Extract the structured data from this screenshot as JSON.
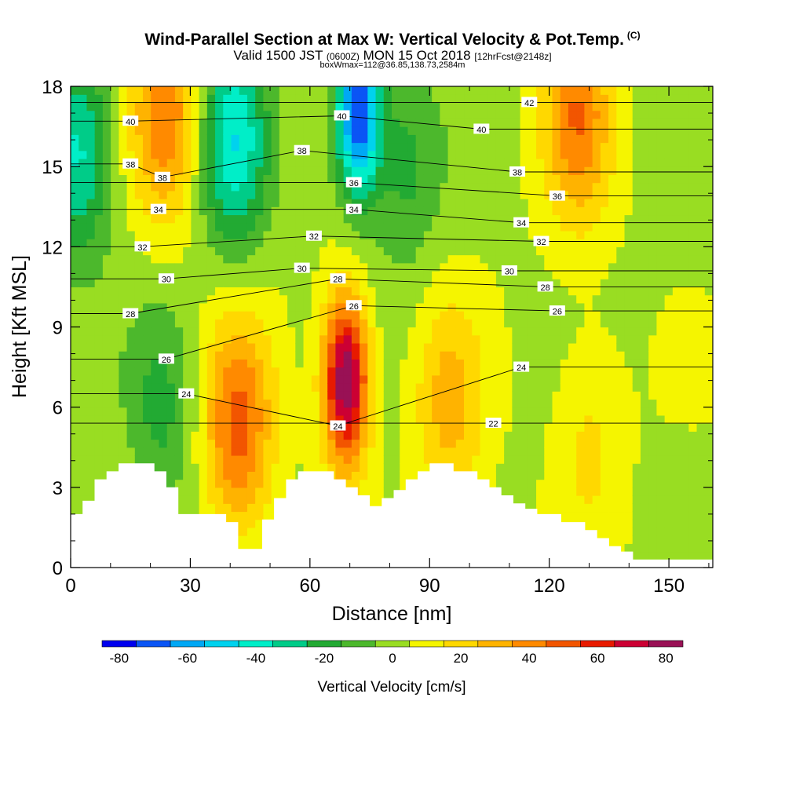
{
  "title": {
    "main": "Wind-Parallel Section at Max W: Vertical Velocity & Pot.Temp.",
    "copyright": "(C)",
    "valid_prefix": "Valid 1500 JST",
    "valid_utc": "(0600Z)",
    "valid_date": "MON 15 Oct 2018",
    "forecast": "[12hrFcst@2148z]",
    "box_info": "boxWmax=112@36.85,138.73,2584m"
  },
  "chart_data": {
    "type": "heatmap",
    "xlabel": "Distance [nm]",
    "ylabel": "Height [Kft MSL]",
    "xlim": [
      0,
      161
    ],
    "ylim": [
      0,
      18
    ],
    "xticks": [
      0,
      30,
      60,
      90,
      120,
      150
    ],
    "yticks": [
      0,
      3,
      6,
      9,
      12,
      15,
      18
    ],
    "colorbar": {
      "label": "Vertical Velocity [cm/s]",
      "ticks": [
        -80,
        -60,
        -40,
        -20,
        0,
        20,
        40,
        60,
        80
      ],
      "bins": [
        -85,
        -75,
        -65,
        -55,
        -45,
        -35,
        -25,
        -15,
        -5,
        5,
        15,
        25,
        35,
        45,
        55,
        65,
        75,
        85
      ],
      "colors": [
        "#0000ee",
        "#0a55f5",
        "#00a8f5",
        "#00d2ee",
        "#00eec8",
        "#00cc88",
        "#22aa33",
        "#4cb82c",
        "#99dd22",
        "#f5f500",
        "#ffd800",
        "#ffb300",
        "#ff8a00",
        "#f25500",
        "#e81a00",
        "#cc0033",
        "#991155",
        "#660088"
      ]
    },
    "field_features": [
      {
        "kind": "updraft",
        "x": 69,
        "y": 7,
        "w": 85,
        "desc": "max updraft core"
      },
      {
        "kind": "updraft",
        "x": 42,
        "y": 5.2,
        "w": 45
      },
      {
        "kind": "updraft",
        "x": 24,
        "y": 17,
        "w": 40
      },
      {
        "kind": "updraft",
        "x": 127,
        "y": 17,
        "w": 40
      },
      {
        "kind": "updraft",
        "x": 95,
        "y": 6,
        "w": 25
      },
      {
        "kind": "updraft",
        "x": 130,
        "y": 5,
        "w": 15
      },
      {
        "kind": "downdraft",
        "x": 72,
        "y": 17,
        "w": -80
      },
      {
        "kind": "downdraft",
        "x": 41,
        "y": 16,
        "w": -45
      },
      {
        "kind": "downdraft",
        "x": 2,
        "y": 15.5,
        "w": -40
      },
      {
        "kind": "downdraft",
        "x": 23,
        "y": 6,
        "w": -20
      },
      {
        "kind": "downdraft",
        "x": 84,
        "y": 15,
        "w": -20
      }
    ],
    "contours": {
      "variable": "Potential Temperature",
      "labels": [
        {
          "value": 40,
          "x": 15,
          "y": 16.7
        },
        {
          "value": 38,
          "x": 15,
          "y": 15.1
        },
        {
          "value": 38,
          "x": 23,
          "y": 14.6
        },
        {
          "value": 34,
          "x": 22,
          "y": 13.4
        },
        {
          "value": 32,
          "x": 18,
          "y": 12.0
        },
        {
          "value": 30,
          "x": 24,
          "y": 10.8
        },
        {
          "value": 28,
          "x": 15,
          "y": 9.5
        },
        {
          "value": 26,
          "x": 24,
          "y": 7.8
        },
        {
          "value": 24,
          "x": 29,
          "y": 6.5
        },
        {
          "value": 40,
          "x": 68,
          "y": 16.9
        },
        {
          "value": 38,
          "x": 58,
          "y": 15.6
        },
        {
          "value": 36,
          "x": 71,
          "y": 14.4
        },
        {
          "value": 34,
          "x": 71,
          "y": 13.4
        },
        {
          "value": 32,
          "x": 61,
          "y": 12.4
        },
        {
          "value": 30,
          "x": 58,
          "y": 11.2
        },
        {
          "value": 28,
          "x": 67,
          "y": 10.8
        },
        {
          "value": 26,
          "x": 71,
          "y": 9.8
        },
        {
          "value": 24,
          "x": 67,
          "y": 5.3
        },
        {
          "value": 42,
          "x": 115,
          "y": 17.4
        },
        {
          "value": 40,
          "x": 103,
          "y": 16.4
        },
        {
          "value": 38,
          "x": 112,
          "y": 14.8
        },
        {
          "value": 36,
          "x": 122,
          "y": 13.9
        },
        {
          "value": 34,
          "x": 113,
          "y": 12.9
        },
        {
          "value": 32,
          "x": 118,
          "y": 12.2
        },
        {
          "value": 30,
          "x": 110,
          "y": 11.1
        },
        {
          "value": 28,
          "x": 119,
          "y": 10.5
        },
        {
          "value": 26,
          "x": 122,
          "y": 9.6
        },
        {
          "value": 24,
          "x": 113,
          "y": 7.5
        },
        {
          "value": 22,
          "x": 106,
          "y": 5.4
        }
      ]
    },
    "terrain": [
      [
        0,
        2.0
      ],
      [
        3,
        2.0
      ],
      [
        3,
        2.5
      ],
      [
        6,
        2.5
      ],
      [
        6,
        3.3
      ],
      [
        9,
        3.3
      ],
      [
        9,
        3.6
      ],
      [
        12,
        3.6
      ],
      [
        12,
        3.9
      ],
      [
        21,
        3.9
      ],
      [
        21,
        3.6
      ],
      [
        24,
        3.6
      ],
      [
        24,
        3.0
      ],
      [
        27,
        3.0
      ],
      [
        27,
        2.0
      ],
      [
        39,
        2.0
      ],
      [
        39,
        1.7
      ],
      [
        42,
        1.7
      ],
      [
        42,
        0.7
      ],
      [
        48,
        0.7
      ],
      [
        48,
        1.8
      ],
      [
        51,
        1.8
      ],
      [
        51,
        2.6
      ],
      [
        54,
        2.6
      ],
      [
        54,
        3.3
      ],
      [
        57,
        3.3
      ],
      [
        57,
        3.6
      ],
      [
        66,
        3.6
      ],
      [
        66,
        3.3
      ],
      [
        69,
        3.3
      ],
      [
        69,
        3.0
      ],
      [
        72,
        3.0
      ],
      [
        72,
        2.7
      ],
      [
        75,
        2.7
      ],
      [
        75,
        2.3
      ],
      [
        78,
        2.3
      ],
      [
        78,
        2.6
      ],
      [
        81,
        2.6
      ],
      [
        81,
        2.9
      ],
      [
        84,
        2.9
      ],
      [
        84,
        3.3
      ],
      [
        87,
        3.3
      ],
      [
        87,
        3.6
      ],
      [
        90,
        3.6
      ],
      [
        90,
        3.9
      ],
      [
        96,
        3.9
      ],
      [
        96,
        3.6
      ],
      [
        102,
        3.6
      ],
      [
        102,
        3.3
      ],
      [
        105,
        3.3
      ],
      [
        105,
        3.0
      ],
      [
        108,
        3.0
      ],
      [
        108,
        2.7
      ],
      [
        111,
        2.7
      ],
      [
        111,
        2.4
      ],
      [
        114,
        2.4
      ],
      [
        114,
        2.2
      ],
      [
        117,
        2.2
      ],
      [
        117,
        2.0
      ],
      [
        123,
        2.0
      ],
      [
        123,
        1.7
      ],
      [
        129,
        1.7
      ],
      [
        129,
        1.4
      ],
      [
        132,
        1.4
      ],
      [
        132,
        1.1
      ],
      [
        135,
        1.1
      ],
      [
        135,
        0.8
      ],
      [
        138,
        0.8
      ],
      [
        138,
        0.6
      ],
      [
        141,
        0.6
      ],
      [
        141,
        0.3
      ],
      [
        161,
        0.3
      ]
    ]
  }
}
